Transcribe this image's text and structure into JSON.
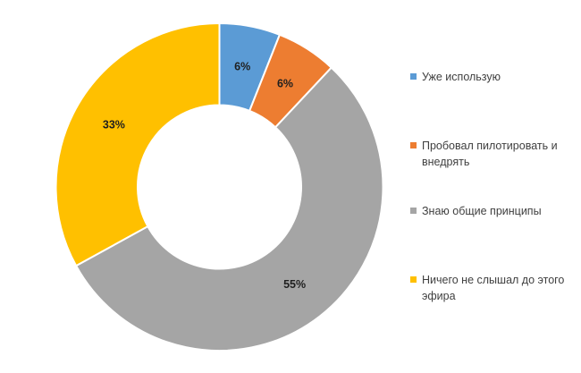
{
  "chart_data": {
    "type": "pie",
    "subtype": "donut",
    "hole_ratio": 0.5,
    "start_angle_deg": 0,
    "direction": "clockwise",
    "categories": [
      "Уже использую",
      "Пробовал пилотировать и внедрять",
      "Знаю общие принципы",
      "Ничего не слышал до этого эфира"
    ],
    "values": [
      6,
      6,
      55,
      33
    ],
    "labels": [
      "6%",
      "6%",
      "55%",
      "33%"
    ],
    "colors": [
      "#5B9BD5",
      "#ED7D31",
      "#A5A5A5",
      "#FFC000"
    ],
    "legend_position": "right",
    "background_color": "#FFFFFF",
    "slice_border_color": "#FFFFFF"
  }
}
